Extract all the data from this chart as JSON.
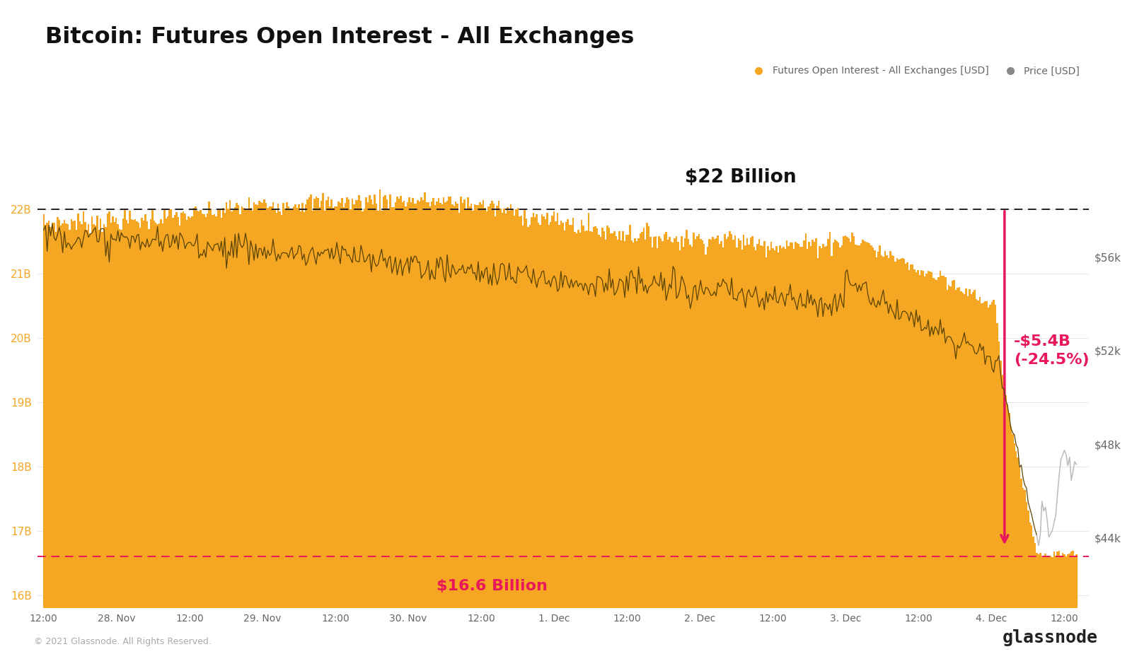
{
  "title": "Bitcoin: Futures Open Interest - All Exchanges",
  "background_color": "#ffffff",
  "bar_color": "#f5a623",
  "annotation_line_color": "#e8185a",
  "dashed_line_black": "#222222",
  "dashed_line_pink": "#e8185a",
  "price_line_dark": "#5a4400",
  "price_line_light": "#bbbbbb",
  "ylim_left": [
    15800000000.0,
    23800000000.0
  ],
  "ylim_right": [
    41000,
    63000
  ],
  "yticks_left": [
    16000000000.0,
    17000000000.0,
    18000000000.0,
    19000000000.0,
    20000000000.0,
    21000000000.0,
    22000000000.0
  ],
  "ytick_labels_left": [
    "16B",
    "17B",
    "18B",
    "19B",
    "20B",
    "21B",
    "22B"
  ],
  "yticks_right": [
    44000,
    48000,
    52000,
    56000
  ],
  "ytick_labels_right": [
    "$44k",
    "$48k",
    "$52k",
    "$56k"
  ],
  "copyright_text": "© 2021 Glassnode. All Rights Reserved.",
  "watermark_text": "glassnode",
  "legend_label1": "Futures Open Interest - All Exchanges [USD]",
  "legend_label2": "Price [USD]",
  "annotation_high": "$22 Billion",
  "annotation_low": "$16.6 Billion",
  "annotation_change": "-$5.4B\n(-24.5%)",
  "high_value": 22000000000.0,
  "low_value": 16600000000.0,
  "n_points": 600
}
